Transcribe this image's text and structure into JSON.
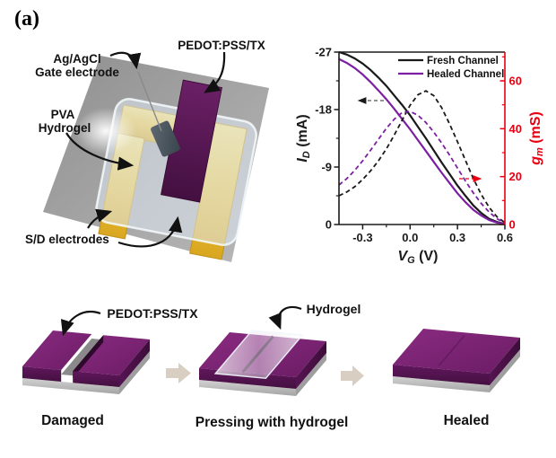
{
  "panel_label": "(a)",
  "device_schematic": {
    "labels": {
      "gate_line1": "Ag/AgCl",
      "gate_line2": "Gate electrode",
      "channel": "PEDOT:PSS/TX",
      "hydrogel_line1": "PVA",
      "hydrogel_line2": "Hydrogel",
      "sd": "S/D electrodes"
    },
    "colors": {
      "substrate": "#9a9a9a",
      "electrodes_gold": "#eec33f",
      "channel_purple": "#5a1755",
      "hydrogel": "#dfeaf3",
      "gate": "#4e5a63"
    }
  },
  "chart_data": {
    "type": "line",
    "title": "",
    "xlabel": {
      "var": "V",
      "sub": "G",
      "unit": " (V)"
    },
    "ylabel_left": {
      "var": "I",
      "sub": "D",
      "unit": " (mA)"
    },
    "ylabel_right": {
      "var": "g",
      "sub": "m",
      "unit": " (mS)"
    },
    "xlim": [
      -0.45,
      0.6
    ],
    "ylim_left": [
      -27,
      0
    ],
    "ylim_right": [
      0,
      72
    ],
    "x_ticks": [
      -0.3,
      0.0,
      0.3,
      0.6
    ],
    "x_tick_labels": [
      "-0.3",
      "0.0",
      "0.3",
      "0.6"
    ],
    "x_minor_ticks": [
      -0.15,
      0.15,
      0.45
    ],
    "y_ticks_left": [
      -27,
      -18,
      -9,
      0
    ],
    "y_tick_labels_left": [
      "-27",
      "-18",
      "-9",
      "0"
    ],
    "y_minor_ticks_left": [
      -22.5,
      -13.5,
      -4.5
    ],
    "y_ticks_right": [
      0,
      20,
      40,
      60
    ],
    "y_tick_labels_right": [
      "0",
      "20",
      "40",
      "60"
    ],
    "y_minor_ticks_right": [
      10,
      30,
      50,
      70
    ],
    "axis_color_left": "#1a1a1a",
    "axis_color_right": "#e60012",
    "grid": false,
    "legend_position": "top-right-inside",
    "legend": [
      {
        "label": "Fresh Channel",
        "color": "#1a1a1a"
      },
      {
        "label": "Healed Channel",
        "color": "#7d1fa2"
      }
    ],
    "series": [
      {
        "name": "Fresh Channel ID",
        "axis": "left",
        "dash": false,
        "color": "#1a1a1a",
        "x": [
          -0.45,
          -0.4,
          -0.35,
          -0.3,
          -0.25,
          -0.2,
          -0.15,
          -0.1,
          -0.05,
          0.0,
          0.05,
          0.1,
          0.15,
          0.2,
          0.25,
          0.3,
          0.35,
          0.4,
          0.45,
          0.5,
          0.55,
          0.6
        ],
        "y": [
          -27.0,
          -26.6,
          -26.0,
          -25.2,
          -24.2,
          -23.0,
          -21.7,
          -20.2,
          -18.7,
          -17.1,
          -15.3,
          -13.5,
          -11.6,
          -9.7,
          -7.9,
          -6.1,
          -4.5,
          -3.0,
          -1.8,
          -0.9,
          -0.4,
          -0.1
        ]
      },
      {
        "name": "Healed Channel ID",
        "axis": "left",
        "dash": false,
        "color": "#7d1fa2",
        "x": [
          -0.45,
          -0.4,
          -0.35,
          -0.3,
          -0.25,
          -0.2,
          -0.15,
          -0.1,
          -0.05,
          0.0,
          0.05,
          0.1,
          0.15,
          0.2,
          0.25,
          0.3,
          0.35,
          0.4,
          0.45,
          0.5,
          0.55,
          0.6
        ],
        "y": [
          -25.9,
          -25.3,
          -24.5,
          -23.5,
          -22.3,
          -21.0,
          -19.6,
          -18.1,
          -16.5,
          -14.9,
          -13.2,
          -11.5,
          -9.8,
          -8.1,
          -6.5,
          -4.9,
          -3.5,
          -2.3,
          -1.4,
          -0.7,
          -0.3,
          -0.1
        ]
      },
      {
        "name": "Fresh Channel gm",
        "axis": "right",
        "dash": true,
        "color": "#1a1a1a",
        "x": [
          -0.45,
          -0.4,
          -0.35,
          -0.3,
          -0.25,
          -0.2,
          -0.15,
          -0.1,
          -0.05,
          0.0,
          0.05,
          0.1,
          0.15,
          0.2,
          0.25,
          0.3,
          0.35,
          0.4,
          0.45,
          0.5,
          0.55,
          0.6
        ],
        "y": [
          12.0,
          13.6,
          15.8,
          18.8,
          22.4,
          26.6,
          31.6,
          37.4,
          43.6,
          49.8,
          54.2,
          55.8,
          53.8,
          48.8,
          42.0,
          34.6,
          26.8,
          19.2,
          12.6,
          7.2,
          3.2,
          0.8
        ]
      },
      {
        "name": "Healed Channel gm",
        "axis": "right",
        "dash": true,
        "color": "#7d1fa2",
        "x": [
          -0.45,
          -0.4,
          -0.35,
          -0.3,
          -0.25,
          -0.2,
          -0.15,
          -0.1,
          -0.05,
          0.0,
          0.05,
          0.1,
          0.15,
          0.2,
          0.25,
          0.3,
          0.35,
          0.4,
          0.45,
          0.5,
          0.55,
          0.6
        ],
        "y": [
          16.5,
          19.2,
          22.6,
          26.6,
          31.0,
          35.6,
          40.2,
          44.0,
          46.8,
          47.2,
          45.6,
          42.6,
          38.6,
          34.0,
          29.0,
          23.6,
          18.2,
          13.2,
          8.8,
          5.2,
          2.4,
          0.7
        ]
      }
    ]
  },
  "healing_process": {
    "labels": {
      "film": "PEDOT:PSS/TX",
      "gel": "Hydrogel"
    },
    "captions": [
      "Damaged",
      "Pressing with hydrogel",
      "Healed"
    ],
    "film_color": "#76216f"
  }
}
